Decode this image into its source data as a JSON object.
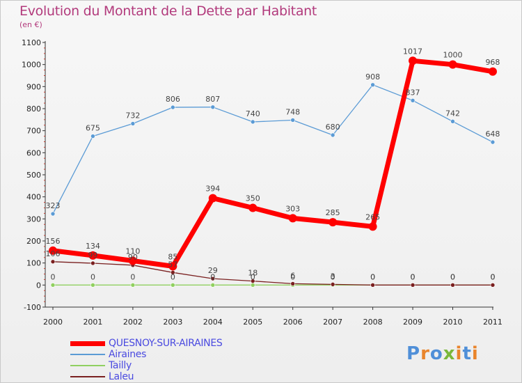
{
  "title": "Evolution du Montant de la Dette par Habitant",
  "subtitle": "(en €)",
  "logo": {
    "text": "Proxiti",
    "letter_colors": [
      "#4f8fd8",
      "#e9852c",
      "#4f8fd8",
      "#7ab83a",
      "#e9852c",
      "#4f8fd8",
      "#e9852c"
    ]
  },
  "chart_data": {
    "type": "line",
    "categories": [
      "2000",
      "2001",
      "2002",
      "2003",
      "2004",
      "2005",
      "2006",
      "2007",
      "2008",
      "2009",
      "2010",
      "2011"
    ],
    "ylim": [
      -100,
      1100
    ],
    "yticks": [
      -100,
      0,
      100,
      200,
      300,
      400,
      500,
      600,
      700,
      800,
      900,
      1000,
      1100
    ],
    "grid": false,
    "legend_position": "bottom-left",
    "series": [
      {
        "name": "QUESNOY-SUR-AIRAINES",
        "color": "#ff0000",
        "values": [
          156,
          134,
          110,
          85,
          394,
          350,
          303,
          285,
          265,
          1017,
          1000,
          968
        ],
        "labels": [
          "156",
          "134",
          "110",
          "85",
          "394",
          "350",
          "303",
          "285",
          "265",
          "1017",
          "1000",
          "968"
        ]
      },
      {
        "name": "Airaines",
        "color": "#5b9bd5",
        "values": [
          323,
          675,
          732,
          806,
          807,
          740,
          748,
          680,
          908,
          837,
          742,
          648
        ],
        "labels": [
          "323",
          "675",
          "732",
          "806",
          "807",
          "740",
          "748",
          "680",
          "908",
          "837",
          "742",
          "648"
        ]
      },
      {
        "name": "Tailly",
        "color": "#90d060",
        "values": [
          0,
          0,
          0,
          0,
          0,
          0,
          0,
          0,
          0,
          0,
          0,
          0
        ],
        "labels": [
          "0",
          "0",
          "0",
          "0",
          "0",
          "0",
          "0",
          "0",
          "0",
          "0",
          "0",
          "0"
        ]
      },
      {
        "name": "Laleu",
        "color": "#7a2020",
        "values": [
          106,
          99,
          90,
          57,
          29,
          18,
          6,
          3,
          0,
          0,
          0,
          0
        ],
        "labels": [
          "106",
          "99",
          "90",
          "57",
          "29",
          "18",
          "6",
          "3",
          "0",
          "0",
          "0",
          "0"
        ]
      }
    ]
  }
}
